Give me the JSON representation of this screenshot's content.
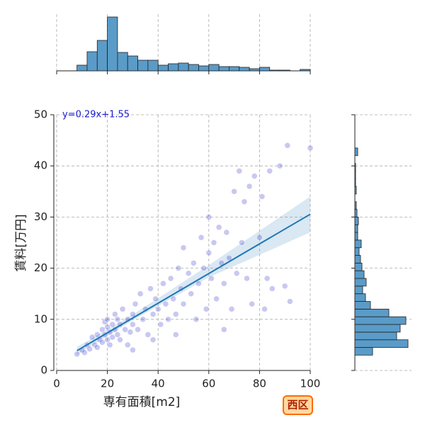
{
  "chart_data": {
    "type": "scatter",
    "x_label": "専有面積[m2]",
    "y_label": "賃料[万円]",
    "badge": "西区",
    "xlim": [
      0,
      100
    ],
    "xticks": [
      0,
      20,
      40,
      60,
      80,
      100
    ],
    "ylim": [
      0,
      50
    ],
    "yticks": [
      0,
      10,
      20,
      30,
      40,
      50
    ],
    "grid": true,
    "point_color": "#3a3ad0",
    "x": [
      8,
      10,
      11,
      12,
      13,
      14,
      15,
      16,
      16,
      17,
      18,
      18,
      19,
      19,
      20,
      20,
      20,
      21,
      21,
      22,
      22,
      23,
      23,
      24,
      24,
      25,
      25,
      26,
      27,
      28,
      28,
      29,
      30,
      30,
      31,
      32,
      33,
      34,
      35,
      36,
      37,
      38,
      39,
      40,
      41,
      42,
      43,
      44,
      45,
      46,
      47,
      48,
      49,
      50,
      50,
      52,
      53,
      54,
      55,
      56,
      57,
      58,
      59,
      60,
      60,
      61,
      62,
      63,
      64,
      65,
      66,
      67,
      68,
      69,
      70,
      71,
      72,
      73,
      74,
      75,
      76,
      77,
      78,
      80,
      81,
      82,
      83,
      84,
      85,
      88,
      90,
      91,
      92,
      100,
      66,
      47,
      38,
      30
    ],
    "y": [
      3.2,
      4,
      3.5,
      5,
      4.2,
      6.5,
      5,
      4.5,
      7,
      6,
      5.5,
      8,
      7,
      9.5,
      6,
      8.5,
      10,
      7.5,
      5,
      9,
      6.5,
      11,
      8,
      7,
      10,
      6,
      9,
      12,
      8,
      10,
      5,
      7.5,
      11,
      9,
      13,
      8,
      15,
      10,
      12,
      7,
      16,
      11,
      14,
      12,
      9,
      17,
      13,
      10,
      18,
      14,
      11,
      20,
      16,
      13,
      24,
      19,
      15,
      21,
      10,
      17,
      26,
      20,
      12,
      23,
      30,
      18,
      25,
      14,
      28,
      21,
      17,
      27,
      22,
      12,
      35,
      19,
      39,
      25,
      33,
      18,
      36,
      13,
      38,
      26,
      34,
      12,
      18,
      39,
      16,
      40,
      16.5,
      44,
      13.5,
      43.5,
      8,
      7,
      6,
      4
    ],
    "regression": {
      "label": "y=0.29x+1.55",
      "slope": 0.29,
      "intercept": 1.55,
      "color": "#1f77b4",
      "x": [
        8,
        30,
        60,
        100
      ],
      "ci_lower": [
        3.0,
        9.8,
        18.2,
        27.0
      ],
      "ci_upper": [
        4.6,
        10.9,
        20.6,
        34.0
      ]
    },
    "top_histogram": {
      "color": "#5a9bc8",
      "ylim": [
        0,
        80
      ],
      "bins": [
        8,
        12,
        16,
        20,
        24,
        28,
        32,
        36,
        40,
        44,
        48,
        52,
        56,
        60,
        64,
        68,
        72,
        76,
        80,
        84,
        88,
        92,
        96,
        100
      ],
      "counts": [
        8,
        27,
        43,
        76,
        26,
        21,
        15,
        15,
        8,
        10,
        11,
        9,
        7,
        9,
        6,
        6,
        5,
        3,
        5,
        1,
        1,
        0,
        2
      ]
    },
    "right_histogram": {
      "color": "#5a9bc8",
      "xlim": [
        0,
        80
      ],
      "bins": [
        3,
        4.5,
        6,
        7.5,
        9,
        10.5,
        12,
        13.5,
        15,
        16.5,
        18,
        19.5,
        21,
        22.5,
        24,
        25.5,
        27,
        28.5,
        30,
        31.5,
        33,
        34.5,
        36,
        37.5,
        39,
        40.5,
        42,
        43.5,
        45
      ],
      "counts": [
        25,
        75,
        59,
        64,
        72,
        48,
        22,
        15,
        11,
        16,
        13,
        10,
        8,
        6,
        9,
        4,
        4,
        5,
        3,
        2,
        0,
        2,
        1,
        1,
        1,
        0,
        4,
        0
      ]
    }
  }
}
